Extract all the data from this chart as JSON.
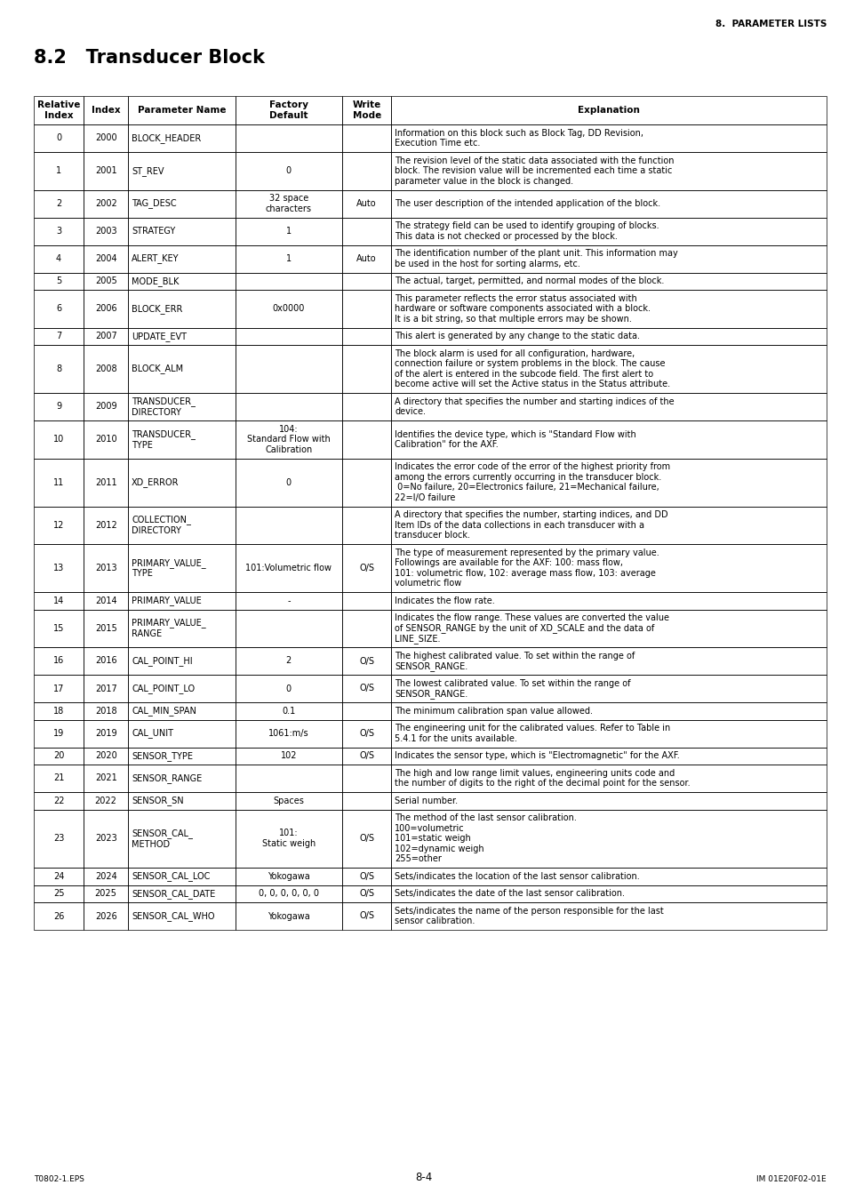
{
  "header_right": "8.  PARAMETER LISTS",
  "title": "8.2   Transducer Block",
  "footer_left": "T0802-1.EPS",
  "footer_right": "IM 01E20F02-01E",
  "page_num": "8-4",
  "col_headers": [
    "Relative\nIndex",
    "Index",
    "Parameter Name",
    "Factory\nDefault",
    "Write\nMode",
    "Explanation"
  ],
  "col_props": [
    0.063,
    0.056,
    0.135,
    0.135,
    0.062,
    0.549
  ],
  "rows": [
    {
      "rel": "0",
      "idx": "2000",
      "name": "BLOCK_HEADER",
      "default": "",
      "mode": "",
      "explanation": "Information on this block such as Block Tag, DD Revision,\nExecution Time etc."
    },
    {
      "rel": "1",
      "idx": "2001",
      "name": "ST_REV",
      "default": "0",
      "mode": "",
      "explanation": "The revision level of the static data associated with the function\nblock. The revision value will be incremented each time a static\nparameter value in the block is changed."
    },
    {
      "rel": "2",
      "idx": "2002",
      "name": "TAG_DESC",
      "default": "32 space\ncharacters",
      "mode": "Auto",
      "explanation": "The user description of the intended application of the block."
    },
    {
      "rel": "3",
      "idx": "2003",
      "name": "STRATEGY",
      "default": "1",
      "mode": "",
      "explanation": "The strategy field can be used to identify grouping of blocks.\nThis data is not checked or processed by the block."
    },
    {
      "rel": "4",
      "idx": "2004",
      "name": "ALERT_KEY",
      "default": "1",
      "mode": "Auto",
      "explanation": "The identification number of the plant unit. This information may\nbe used in the host for sorting alarms, etc."
    },
    {
      "rel": "5",
      "idx": "2005",
      "name": "MODE_BLK",
      "default": "",
      "mode": "",
      "explanation": "The actual, target, permitted, and normal modes of the block."
    },
    {
      "rel": "6",
      "idx": "2006",
      "name": "BLOCK_ERR",
      "default": "0x0000",
      "mode": "",
      "explanation": "This parameter reflects the error status associated with\nhardware or software components associated with a block.\nIt is a bit string, so that multiple errors may be shown."
    },
    {
      "rel": "7",
      "idx": "2007",
      "name": "UPDATE_EVT",
      "default": "",
      "mode": "",
      "explanation": "This alert is generated by any change to the static data."
    },
    {
      "rel": "8",
      "idx": "2008",
      "name": "BLOCK_ALM",
      "default": "",
      "mode": "",
      "explanation": "The block alarm is used for all configuration, hardware,\nconnection failure or system problems in the block. The cause\nof the alert is entered in the subcode field. The first alert to\nbecome active will set the Active status in the Status attribute."
    },
    {
      "rel": "9",
      "idx": "2009",
      "name": "TRANSDUCER_\nDIRECTORY",
      "default": "",
      "mode": "",
      "explanation": "A directory that specifies the number and starting indices of the\ndevice."
    },
    {
      "rel": "10",
      "idx": "2010",
      "name": "TRANSDUCER_\nTYPE",
      "default": "104:\nStandard Flow with\nCalibration",
      "mode": "",
      "explanation": "Identifies the device type, which is \"Standard Flow with\nCalibration\" for the AXF."
    },
    {
      "rel": "11",
      "idx": "2011",
      "name": "XD_ERROR",
      "default": "0",
      "mode": "",
      "explanation": "Indicates the error code of the error of the highest priority from\namong the errors currently occurring in the transducer block.\n 0=No failure, 20=Electronics failure, 21=Mechanical failure,\n22=I/O failure"
    },
    {
      "rel": "12",
      "idx": "2012",
      "name": "COLLECTION_\nDIRECTORY",
      "default": "",
      "mode": "",
      "explanation": "A directory that specifies the number, starting indices, and DD\nItem IDs of the data collections in each transducer with a\ntransducer block."
    },
    {
      "rel": "13",
      "idx": "2013",
      "name": "PRIMARY_VALUE_\nTYPE",
      "default": "101:Volumetric flow",
      "mode": "O/S",
      "explanation": "The type of measurement represented by the primary value.\nFollowings are available for the AXF: 100: mass flow,\n101: volumetric flow, 102: average mass flow, 103: average\nvolumetric flow"
    },
    {
      "rel": "14",
      "idx": "2014",
      "name": "PRIMARY_VALUE",
      "default": "-",
      "mode": "",
      "explanation": "Indicates the flow rate."
    },
    {
      "rel": "15",
      "idx": "2015",
      "name": "PRIMARY_VALUE_\nRANGE",
      "default": "",
      "mode": "",
      "explanation": "Indicates the flow range. These values are converted the value\nof SENSOR_RANGE by the unit of XD_SCALE and the data of\nLINE_SIZE."
    },
    {
      "rel": "16",
      "idx": "2016",
      "name": "CAL_POINT_HI",
      "default": "2",
      "mode": "O/S",
      "explanation": "The highest calibrated value. To set within the range of\nSENSOR_RANGE."
    },
    {
      "rel": "17",
      "idx": "2017",
      "name": "CAL_POINT_LO",
      "default": "0",
      "mode": "O/S",
      "explanation": "The lowest calibrated value. To set within the range of\nSENSOR_RANGE."
    },
    {
      "rel": "18",
      "idx": "2018",
      "name": "CAL_MIN_SPAN",
      "default": "0.1",
      "mode": "",
      "explanation": "The minimum calibration span value allowed."
    },
    {
      "rel": "19",
      "idx": "2019",
      "name": "CAL_UNIT",
      "default": "1061:m/s",
      "mode": "O/S",
      "explanation": "The engineering unit for the calibrated values. Refer to Table in\n5.4.1 for the units available."
    },
    {
      "rel": "20",
      "idx": "2020",
      "name": "SENSOR_TYPE",
      "default": "102",
      "mode": "O/S",
      "explanation": "Indicates the sensor type, which is \"Electromagnetic\" for the AXF."
    },
    {
      "rel": "21",
      "idx": "2021",
      "name": "SENSOR_RANGE",
      "default": "",
      "mode": "",
      "explanation": "The high and low range limit values, engineering units code and\nthe number of digits to the right of the decimal point for the sensor."
    },
    {
      "rel": "22",
      "idx": "2022",
      "name": "SENSOR_SN",
      "default": "Spaces",
      "mode": "",
      "explanation": "Serial number."
    },
    {
      "rel": "23",
      "idx": "2023",
      "name": "SENSOR_CAL_\nMETHOD",
      "default": "101:\nStatic weigh",
      "mode": "O/S",
      "explanation": "The method of the last sensor calibration.\n100=volumetric\n101=static weigh\n102=dynamic weigh\n255=other"
    },
    {
      "rel": "24",
      "idx": "2024",
      "name": "SENSOR_CAL_LOC",
      "default": "Yokogawa",
      "mode": "O/S",
      "explanation": "Sets/indicates the location of the last sensor calibration."
    },
    {
      "rel": "25",
      "idx": "2025",
      "name": "SENSOR_CAL_DATE",
      "default": "0, 0, 0, 0, 0, 0",
      "mode": "O/S",
      "explanation": "Sets/indicates the date of the last sensor calibration."
    },
    {
      "rel": "26",
      "idx": "2026",
      "name": "SENSOR_CAL_WHO",
      "default": "Yokogawa",
      "mode": "O/S",
      "explanation": "Sets/indicates the name of the person responsible for the last\nsensor calibration."
    }
  ]
}
